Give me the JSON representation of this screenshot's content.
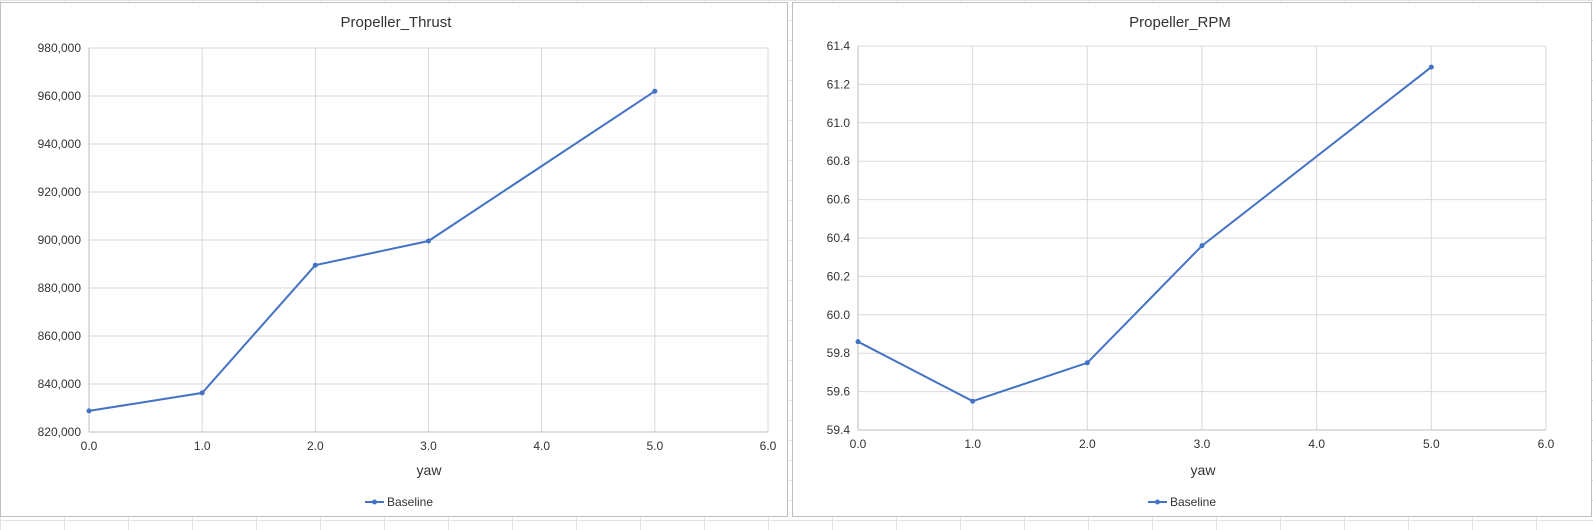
{
  "colors": {
    "series": "#4472C4",
    "grid": "#d9d9d9",
    "axis": "#bfbfbf",
    "text": "#333333"
  },
  "chart_data": [
    {
      "type": "scatter",
      "title": "Propeller_Thrust",
      "xlabel": "yaw",
      "ylabel": "",
      "xlim": [
        0,
        6
      ],
      "ylim": [
        820000,
        980000
      ],
      "xticks": [
        0,
        1,
        2,
        3,
        4,
        5,
        6
      ],
      "yticks": [
        820000,
        840000,
        860000,
        880000,
        900000,
        920000,
        940000,
        960000,
        980000
      ],
      "xtick_labels": [
        "0.0",
        "1.0",
        "2.0",
        "3.0",
        "4.0",
        "5.0",
        "6.0"
      ],
      "ytick_labels": [
        "820,000",
        "840,000",
        "860,000",
        "880,000",
        "900,000",
        "920,000",
        "940,000",
        "960,000",
        "980,000"
      ],
      "grid": true,
      "legend_position": "bottom",
      "series": [
        {
          "name": "Baseline",
          "color": "#4472C4",
          "x": [
            0,
            1,
            2,
            3,
            5
          ],
          "y": [
            828800,
            836300,
            889500,
            899600,
            962000
          ]
        }
      ]
    },
    {
      "type": "scatter",
      "title": "Propeller_RPM",
      "xlabel": "yaw",
      "ylabel": "",
      "xlim": [
        0,
        6
      ],
      "ylim": [
        59.4,
        61.4
      ],
      "xticks": [
        0,
        1,
        2,
        3,
        4,
        5,
        6
      ],
      "yticks": [
        59.4,
        59.6,
        59.8,
        60.0,
        60.2,
        60.4,
        60.6,
        60.8,
        61.0,
        61.2,
        61.4
      ],
      "xtick_labels": [
        "0.0",
        "1.0",
        "2.0",
        "3.0",
        "4.0",
        "5.0",
        "6.0"
      ],
      "ytick_labels": [
        "59.4",
        "59.6",
        "59.8",
        "60.0",
        "60.2",
        "60.4",
        "60.6",
        "60.8",
        "61.0",
        "61.2",
        "61.4"
      ],
      "grid": true,
      "legend_position": "bottom",
      "series": [
        {
          "name": "Baseline",
          "color": "#4472C4",
          "x": [
            0,
            1,
            2,
            3,
            5
          ],
          "y": [
            59.86,
            59.55,
            59.75,
            60.36,
            61.29
          ]
        }
      ]
    }
  ]
}
